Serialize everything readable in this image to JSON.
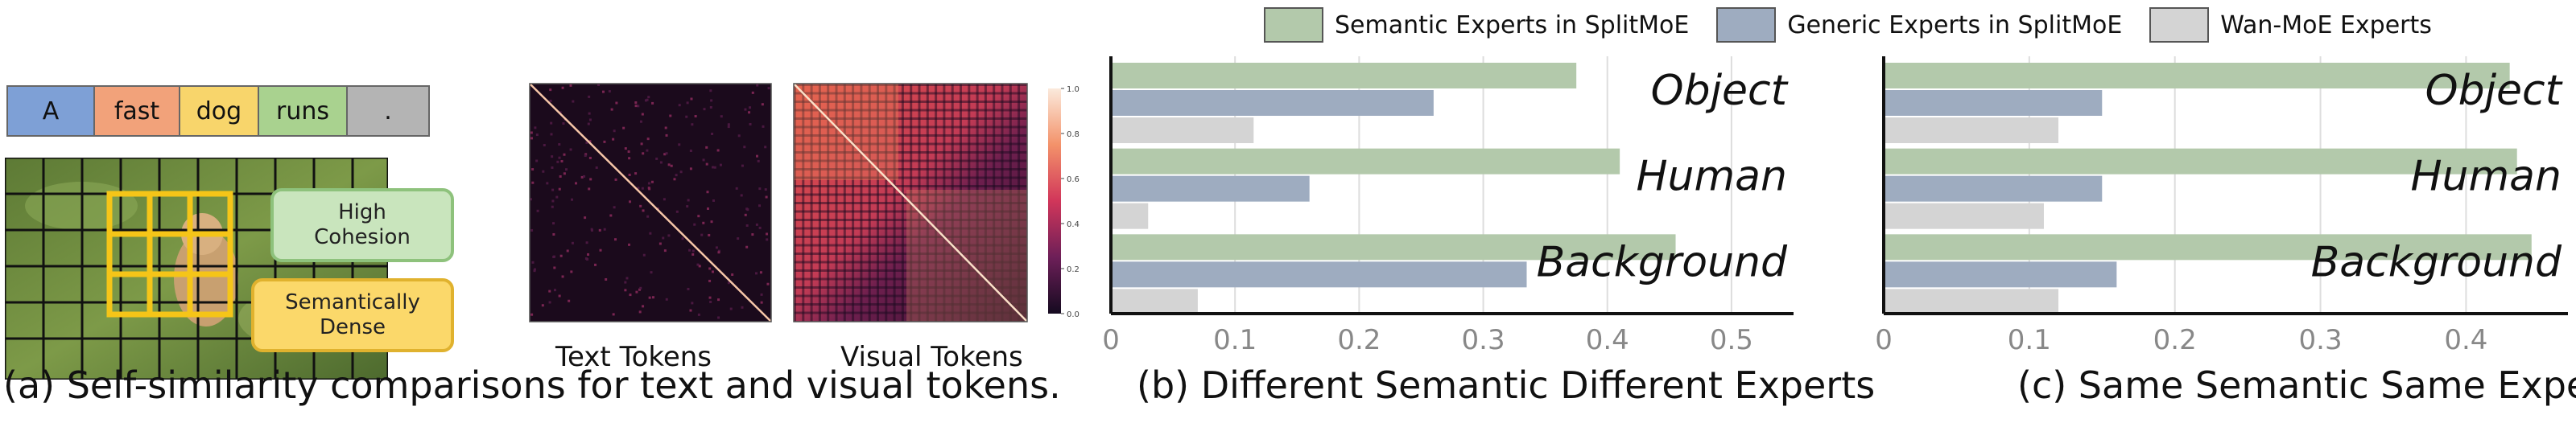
{
  "legend": {
    "items": [
      {
        "label": "Semantic Experts in  SplitMoE",
        "color": "#b3c9ab"
      },
      {
        "label": "Generic Experts in  SplitMoE",
        "color": "#9eacc0"
      },
      {
        "label": "Wan-MoE Experts",
        "color": "#d4d4d4"
      }
    ]
  },
  "panel_a": {
    "tokens": [
      {
        "text": "A",
        "color": "#7ea0d6"
      },
      {
        "text": "fast",
        "color": "#f2a27a"
      },
      {
        "text": "dog",
        "color": "#f8d56b"
      },
      {
        "text": "runs",
        "color": "#a9d28f"
      },
      {
        "text": ".",
        "color": "#b4b4b4"
      }
    ],
    "tags": {
      "high": "High\nCohesion",
      "dense": "Semantically\nDense"
    },
    "heatmap_labels": {
      "text": "Text Tokens",
      "visual": "Visual Tokens"
    },
    "colorbar_ticks": [
      "1.0",
      "0.8",
      "0.6",
      "0.4",
      "0.2",
      "0.0"
    ],
    "caption": "(a) Self-similarity comparisons for text and visual tokens."
  },
  "chart_data": [
    {
      "type": "bar",
      "orientation": "horizontal",
      "categories": [
        "Object",
        "Human",
        "Background"
      ],
      "series": [
        {
          "name": "Semantic Experts in  SplitMoE",
          "values": [
            0.375,
            0.41,
            0.455
          ]
        },
        {
          "name": "Generic Experts in  SplitMoE",
          "values": [
            0.26,
            0.16,
            0.335
          ]
        },
        {
          "name": "Wan-MoE Experts",
          "values": [
            0.115,
            0.03,
            0.07
          ]
        }
      ],
      "xlim": [
        0,
        0.55
      ],
      "xticks": [
        "0",
        "0.1",
        "0.2",
        "0.3",
        "0.4",
        "0.5"
      ],
      "grid": true,
      "caption": "(b) Different Semantic Different Experts"
    },
    {
      "type": "bar",
      "orientation": "horizontal",
      "categories": [
        "Object",
        "Human",
        "Background"
      ],
      "series": [
        {
          "name": "Semantic Experts in  SplitMoE",
          "values": [
            0.43,
            0.435,
            0.445
          ]
        },
        {
          "name": "Generic Experts in  SplitMoE",
          "values": [
            0.15,
            0.15,
            0.16
          ]
        },
        {
          "name": "Wan-MoE Experts",
          "values": [
            0.12,
            0.11,
            0.12
          ]
        }
      ],
      "xlim": [
        0,
        0.47
      ],
      "xticks": [
        "0",
        "0.1",
        "0.2",
        "0.3",
        "0.4"
      ],
      "grid": true,
      "caption": "(c) Same Semantic Same Experts"
    }
  ]
}
